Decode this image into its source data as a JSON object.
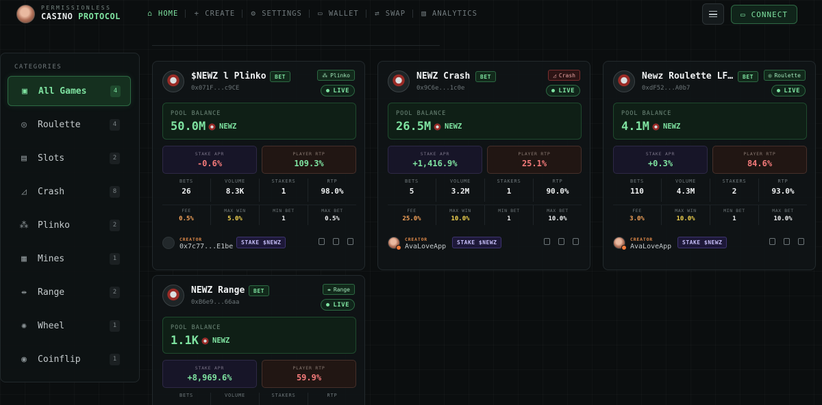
{
  "header": {
    "brand_top": "PERMISSIONLESS",
    "brand_word1": "CASINO",
    "brand_word2": "PROTOCOL",
    "nav": [
      {
        "label": "HOME",
        "icon": "⌂"
      },
      {
        "label": "CREATE",
        "icon": "+"
      },
      {
        "label": "SETTINGS",
        "icon": "⚙"
      },
      {
        "label": "WALLET",
        "icon": "▭"
      },
      {
        "label": "SWAP",
        "icon": "⇄"
      },
      {
        "label": "ANALYTICS",
        "icon": "▥"
      }
    ],
    "connect_label": "CONNECT"
  },
  "sidebar": {
    "title": "CATEGORIES",
    "items": [
      {
        "label": "All Games",
        "count": "4",
        "icon": "▣"
      },
      {
        "label": "Roulette",
        "count": "4",
        "icon": "◎"
      },
      {
        "label": "Slots",
        "count": "2",
        "icon": "▤"
      },
      {
        "label": "Crash",
        "count": "8",
        "icon": "◿"
      },
      {
        "label": "Plinko",
        "count": "2",
        "icon": "⁂"
      },
      {
        "label": "Mines",
        "count": "1",
        "icon": "▦"
      },
      {
        "label": "Range",
        "count": "2",
        "icon": "⇹"
      },
      {
        "label": "Wheel",
        "count": "1",
        "icon": "✺"
      },
      {
        "label": "Coinflip",
        "count": "1",
        "icon": "◉"
      }
    ]
  },
  "cards": [
    {
      "title": "$NEWZ l Plinko",
      "bet": "BET",
      "address": "0x071F...c9CE",
      "type": "Plinko",
      "type_icon": "⁂",
      "live": "LIVE",
      "pool_label": "POOL BALANCE",
      "pool_value": "50.0M",
      "pool_symbol": "NEWZ",
      "apr_label": "STAKE APR",
      "apr_value": "-0.6%",
      "rtp_label": "PLAYER RTP",
      "rtp_value": "109.3%",
      "stats": [
        {
          "label": "BETS",
          "value": "26"
        },
        {
          "label": "VOLUME",
          "value": "8.3K"
        },
        {
          "label": "STAKERS",
          "value": "1"
        },
        {
          "label": "RTP",
          "value": "98.0%"
        }
      ],
      "stats2": [
        {
          "label": "FEE",
          "value": "0.5%"
        },
        {
          "label": "MAX WIN",
          "value": "5.0%"
        },
        {
          "label": "MIN BET",
          "value": "1"
        },
        {
          "label": "MAX BET",
          "value": "0.5%"
        }
      ],
      "creator_label": "CREATOR",
      "creator_name": "0x7c77...E1be",
      "stake_label": "STAKE $NEWZ"
    },
    {
      "title": "NEWZ Crash",
      "bet": "BET",
      "address": "0x9C6e...1c0e",
      "type": "Crash",
      "type_icon": "◿",
      "live": "LIVE",
      "pool_label": "POOL BALANCE",
      "pool_value": "26.5M",
      "pool_symbol": "NEWZ",
      "apr_label": "STAKE APR",
      "apr_value": "+1,416.9%",
      "rtp_label": "PLAYER RTP",
      "rtp_value": "25.1%",
      "stats": [
        {
          "label": "BETS",
          "value": "5"
        },
        {
          "label": "VOLUME",
          "value": "3.2M"
        },
        {
          "label": "STAKERS",
          "value": "1"
        },
        {
          "label": "RTP",
          "value": "90.0%"
        }
      ],
      "stats2": [
        {
          "label": "FEE",
          "value": "25.0%"
        },
        {
          "label": "MAX WIN",
          "value": "10.0%"
        },
        {
          "label": "MIN BET",
          "value": "1"
        },
        {
          "label": "MAX BET",
          "value": "10.0%"
        }
      ],
      "creator_label": "CREATOR",
      "creator_name": "AvaLoveApp",
      "stake_label": "STAKE $NEWZ"
    },
    {
      "title": "Newz Roulette LF...",
      "bet": "BET",
      "address": "0xdF52...A0b7",
      "type": "Roulette",
      "type_icon": "◎",
      "live": "LIVE",
      "pool_label": "POOL BALANCE",
      "pool_value": "4.1M",
      "pool_symbol": "NEWZ",
      "apr_label": "STAKE APR",
      "apr_value": "+0.3%",
      "rtp_label": "PLAYER RTP",
      "rtp_value": "84.6%",
      "stats": [
        {
          "label": "BETS",
          "value": "110"
        },
        {
          "label": "VOLUME",
          "value": "4.3M"
        },
        {
          "label": "STAKERS",
          "value": "2"
        },
        {
          "label": "RTP",
          "value": "93.0%"
        }
      ],
      "stats2": [
        {
          "label": "FEE",
          "value": "3.0%"
        },
        {
          "label": "MAX WIN",
          "value": "10.0%"
        },
        {
          "label": "MIN BET",
          "value": "1"
        },
        {
          "label": "MAX BET",
          "value": "10.0%"
        }
      ],
      "creator_label": "CREATOR",
      "creator_name": "AvaLoveApp",
      "stake_label": "STAKE $NEWZ"
    },
    {
      "title": "NEWZ Range",
      "bet": "BET",
      "address": "0xB6e9...66aa",
      "type": "Range",
      "type_icon": "⇹",
      "live": "LIVE",
      "pool_label": "POOL BALANCE",
      "pool_value": "1.1K",
      "pool_symbol": "NEWZ",
      "apr_label": "STAKE APR",
      "apr_value": "+8,969.6%",
      "rtp_label": "PLAYER RTP",
      "rtp_value": "59.9%",
      "stats": [
        {
          "label": "BETS",
          "value": ""
        },
        {
          "label": "VOLUME",
          "value": ""
        },
        {
          "label": "STAKERS",
          "value": ""
        },
        {
          "label": "RTP",
          "value": ""
        }
      ]
    }
  ]
}
